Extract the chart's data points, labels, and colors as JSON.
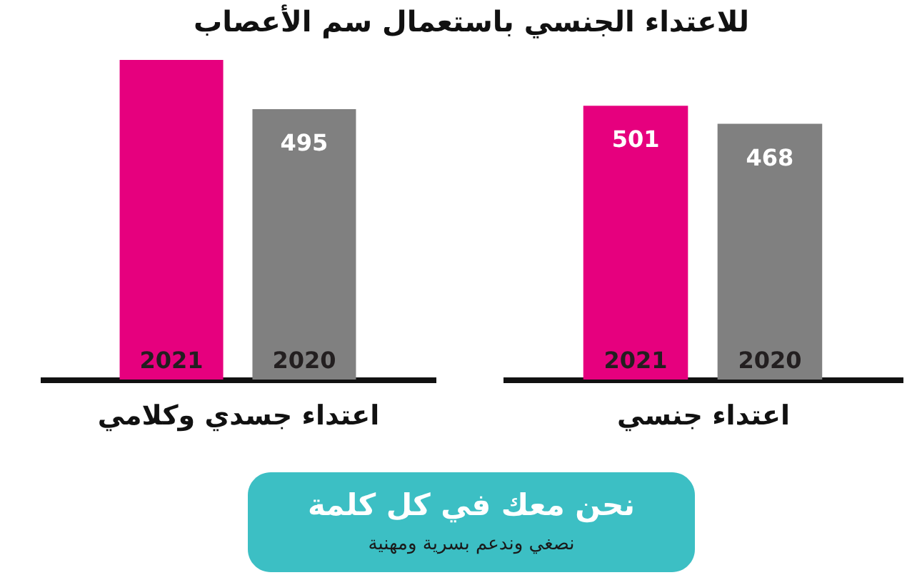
{
  "chart_data": [
    {
      "type": "bar",
      "title": "للاعتداء الجنسي باستعمال سم الأعصاب",
      "xlabel": "اعتداء جسدي وكلامي",
      "categories": [
        "2021",
        "2020"
      ],
      "values": [
        585,
        495
      ],
      "colors": [
        "#e6007e",
        "#808080"
      ],
      "value_labels": [
        null,
        "495"
      ]
    },
    {
      "type": "bar",
      "xlabel": "اعتداء جنسي",
      "categories": [
        "2021",
        "2020"
      ],
      "values": [
        501,
        468
      ],
      "colors": [
        "#e6007e",
        "#808080"
      ],
      "data_labels": true
    },
    {
      "type": "other",
      "color": "#3cbfc4",
      "annotations": [
        "نحن معك في كل كلمة",
        "نصغي وندعم بسرية ومهنية"
      ]
    }
  ]
}
